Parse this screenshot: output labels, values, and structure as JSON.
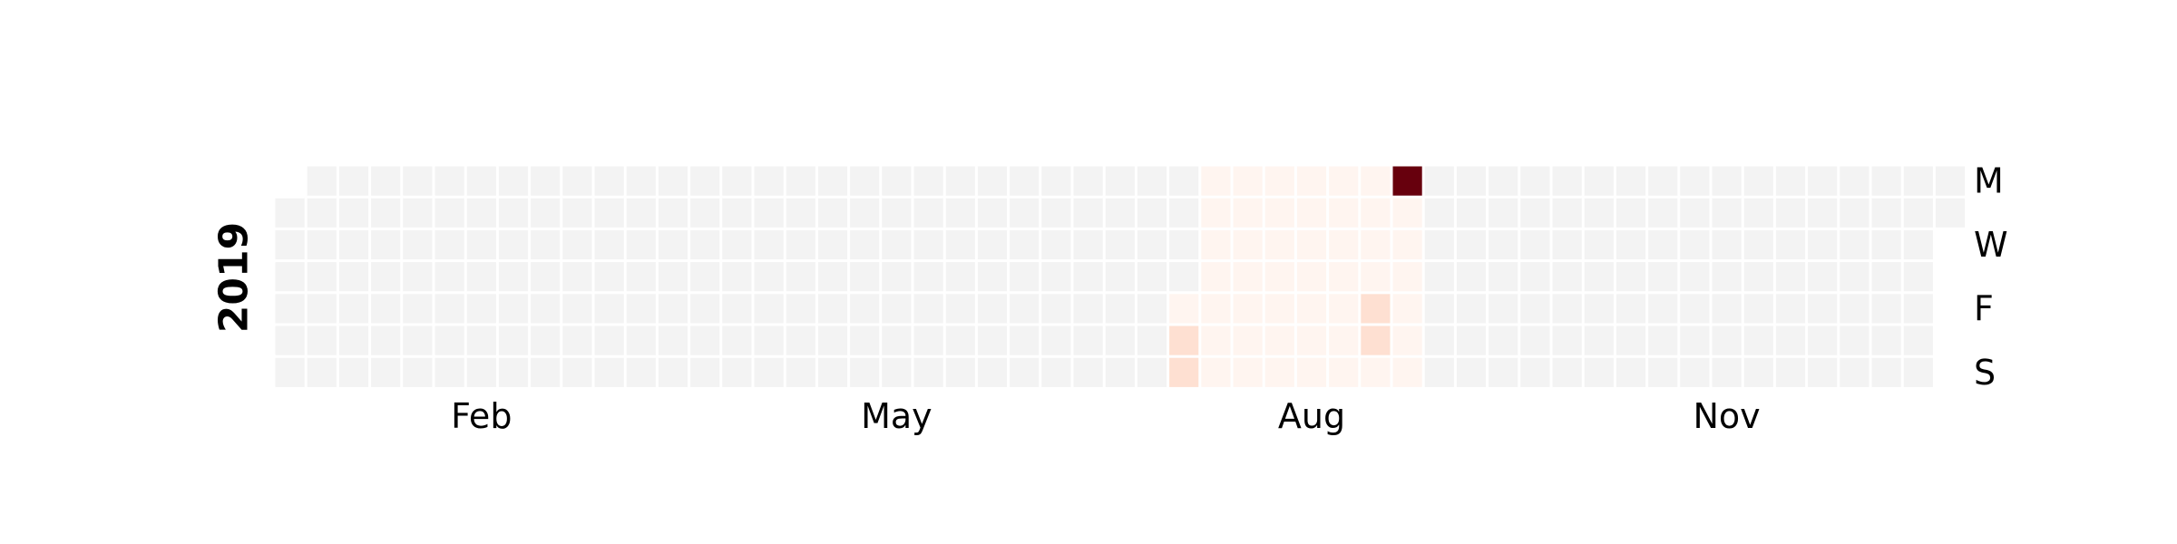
{
  "chart_data": {
    "type": "heatmap",
    "year": 2019,
    "year_label": "2019",
    "month_labels": [
      {
        "label": "Feb",
        "week": 6.5
      },
      {
        "label": "May",
        "week": 19.5
      },
      {
        "label": "Aug",
        "week": 32.5
      },
      {
        "label": "Nov",
        "week": 45.5
      }
    ],
    "day_labels": [
      {
        "label": "M",
        "row": 0
      },
      {
        "label": "W",
        "row": 2
      },
      {
        "label": "F",
        "row": 4
      },
      {
        "label": "S",
        "row": 6
      }
    ],
    "first_day_row": 1,
    "total_days": 365,
    "colorscale": [
      "#f3f3f3",
      "#fff5f0",
      "#fee0d2",
      "#fcbba1",
      "#fc9272",
      "#fb6a4a",
      "#de2d26",
      "#a50f15",
      "#67000d"
    ],
    "max_value": 100,
    "values": [
      {
        "date": "2019-07-19",
        "value": 12
      },
      {
        "date": "2019-07-20",
        "value": 20
      },
      {
        "date": "2019-07-21",
        "value": 20
      },
      {
        "date": "2019-07-22",
        "value": 1
      },
      {
        "date": "2019-07-23",
        "value": 1
      },
      {
        "date": "2019-07-24",
        "value": 1
      },
      {
        "date": "2019-07-25",
        "value": 1
      },
      {
        "date": "2019-07-26",
        "value": 1
      },
      {
        "date": "2019-07-27",
        "value": 1
      },
      {
        "date": "2019-07-28",
        "value": 1
      },
      {
        "date": "2019-07-29",
        "value": 1
      },
      {
        "date": "2019-07-30",
        "value": 1
      },
      {
        "date": "2019-07-31",
        "value": 1
      },
      {
        "date": "2019-08-01",
        "value": 1
      },
      {
        "date": "2019-08-02",
        "value": 1
      },
      {
        "date": "2019-08-03",
        "value": 1
      },
      {
        "date": "2019-08-04",
        "value": 1
      },
      {
        "date": "2019-08-05",
        "value": 1
      },
      {
        "date": "2019-08-06",
        "value": 1
      },
      {
        "date": "2019-08-07",
        "value": 1
      },
      {
        "date": "2019-08-08",
        "value": 1
      },
      {
        "date": "2019-08-09",
        "value": 1
      },
      {
        "date": "2019-08-10",
        "value": 1
      },
      {
        "date": "2019-08-11",
        "value": 1
      },
      {
        "date": "2019-08-12",
        "value": 1
      },
      {
        "date": "2019-08-13",
        "value": 1
      },
      {
        "date": "2019-08-14",
        "value": 1
      },
      {
        "date": "2019-08-15",
        "value": 1
      },
      {
        "date": "2019-08-16",
        "value": 1
      },
      {
        "date": "2019-08-17",
        "value": 1
      },
      {
        "date": "2019-08-18",
        "value": 1
      },
      {
        "date": "2019-08-19",
        "value": 1
      },
      {
        "date": "2019-08-20",
        "value": 1
      },
      {
        "date": "2019-08-21",
        "value": 1
      },
      {
        "date": "2019-08-22",
        "value": 1
      },
      {
        "date": "2019-08-23",
        "value": 1
      },
      {
        "date": "2019-08-24",
        "value": 1
      },
      {
        "date": "2019-08-25",
        "value": 1
      },
      {
        "date": "2019-08-26",
        "value": 1
      },
      {
        "date": "2019-08-27",
        "value": 1
      },
      {
        "date": "2019-08-28",
        "value": 1
      },
      {
        "date": "2019-08-29",
        "value": 1
      },
      {
        "date": "2019-08-30",
        "value": 20
      },
      {
        "date": "2019-08-31",
        "value": 20
      },
      {
        "date": "2019-09-01",
        "value": 1
      },
      {
        "date": "2019-09-02",
        "value": 100
      },
      {
        "date": "2019-09-03",
        "value": 1
      },
      {
        "date": "2019-09-04",
        "value": 7
      },
      {
        "date": "2019-09-05",
        "value": 7
      },
      {
        "date": "2019-09-06",
        "value": 1
      },
      {
        "date": "2019-09-07",
        "value": 1
      },
      {
        "date": "2019-09-08",
        "value": 3
      }
    ]
  }
}
